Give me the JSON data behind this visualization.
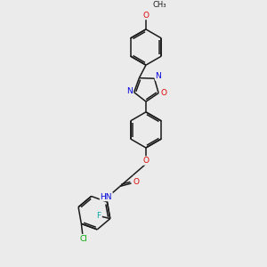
{
  "bg_color": "#ebebeb",
  "bond_color": "#1a1a1a",
  "atom_colors": {
    "O": "#e00000",
    "N": "#0000e0",
    "F": "#00aaaa",
    "Cl": "#00aa00",
    "C": "#1a1a1a",
    "H": "#1a1a1a"
  },
  "lw": 1.1,
  "fig_width": 3.0,
  "fig_height": 3.0,
  "dpi": 100,
  "font_size": 6.5
}
